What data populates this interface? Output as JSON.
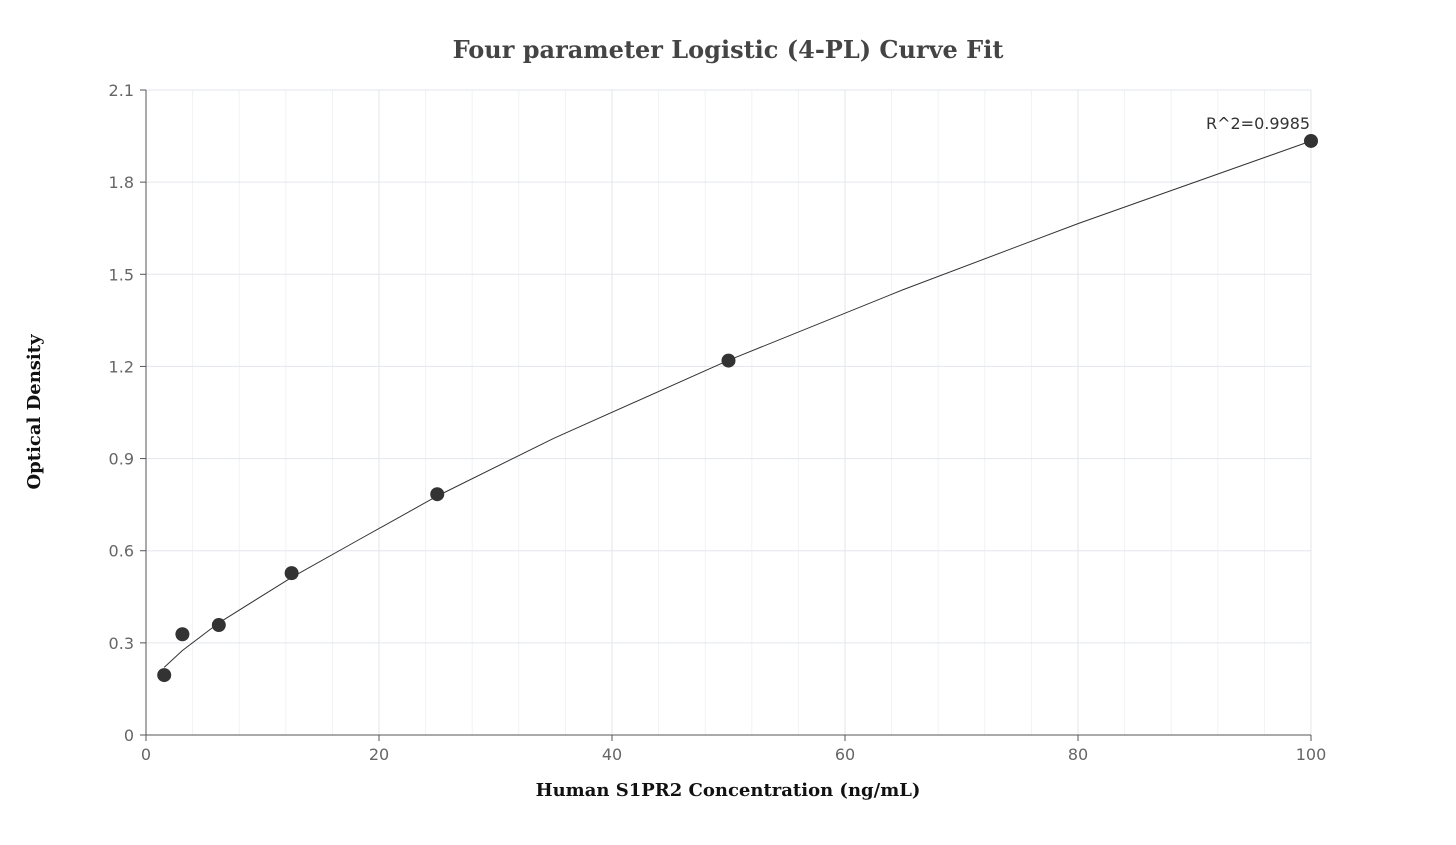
{
  "chart_data": {
    "type": "scatter",
    "title": "Four parameter Logistic (4-PL) Curve Fit",
    "xlabel": "Human S1PR2 Concentration (ng/mL)",
    "ylabel": "Optical Density",
    "xlim": [
      0,
      100
    ],
    "ylim": [
      0,
      2.1
    ],
    "x_ticks": [
      0,
      20,
      40,
      60,
      80,
      100
    ],
    "y_ticks": [
      0,
      0.3,
      0.6,
      0.9,
      1.2,
      1.5,
      1.8,
      2.1
    ],
    "x_tick_labels": [
      "0",
      "20",
      "40",
      "60",
      "80",
      "100"
    ],
    "y_tick_labels": [
      "0",
      "0.3",
      "0.6",
      "0.9",
      "1.2",
      "1.5",
      "1.8",
      "2.1"
    ],
    "grid": true,
    "series": [
      {
        "type": "scatter",
        "x": [
          1.5625,
          3.125,
          6.25,
          12.5,
          25,
          50,
          100
        ],
        "y": [
          0.195,
          0.328,
          0.358,
          0.527,
          0.784,
          1.219,
          1.934
        ]
      },
      {
        "type": "line",
        "x": [
          1.5625,
          3.125,
          6.25,
          12.5,
          18,
          25,
          35,
          50,
          65,
          80,
          100
        ],
        "y": [
          0.22,
          0.275,
          0.365,
          0.513,
          0.63,
          0.778,
          0.966,
          1.22,
          1.45,
          1.665,
          1.934
        ]
      }
    ],
    "annotations": [
      {
        "text": "R^2=0.9985",
        "x": 100,
        "y": 1.934
      }
    ],
    "colors": {
      "point": "#333333",
      "curve": "#333333",
      "grid": "#e3e6ec",
      "axis": "#555555",
      "tick_text": "#666666"
    }
  }
}
